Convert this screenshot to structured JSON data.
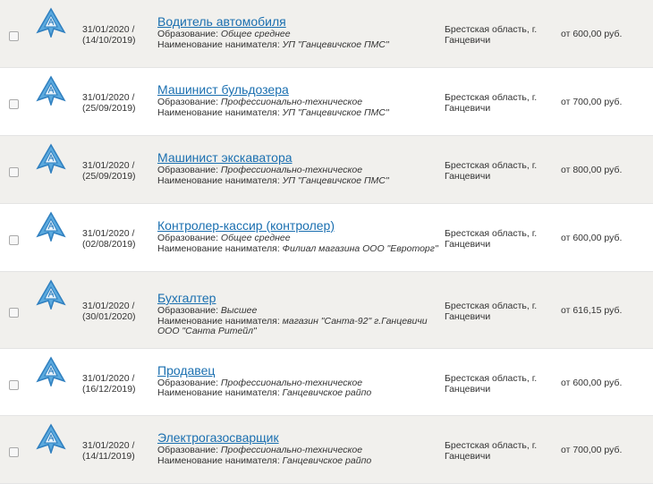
{
  "labels": {
    "education": "Образование: ",
    "employer": "Наименование нанимателя: "
  },
  "vacancies": [
    {
      "date": "31/01/2020 /",
      "orig_date": "(14/10/2019)",
      "title": "Водитель автомобиля",
      "education": "Общее среднее",
      "employer": "УП \"Ганцевичское ПМС\"",
      "employer2": "",
      "location": "Брестская область, г. Ганцевичи",
      "salary": "от 600,00 руб."
    },
    {
      "date": "31/01/2020 /",
      "orig_date": "(25/09/2019)",
      "title": "Машинист бульдозера",
      "education": "Профессионально-техническое",
      "employer": "УП \"Ганцевичское ПМС\"",
      "employer2": "",
      "location": "Брестская область, г. Ганцевичи",
      "salary": "от 700,00 руб."
    },
    {
      "date": "31/01/2020 /",
      "orig_date": "(25/09/2019)",
      "title": "Машинист экскаватора",
      "education": "Профессионально-техническое",
      "employer": "УП \"Ганцевичское ПМС\"",
      "employer2": "",
      "location": "Брестская область, г. Ганцевичи",
      "salary": "от 800,00 руб."
    },
    {
      "date": "31/01/2020 /",
      "orig_date": "(02/08/2019)",
      "title": "Контролер-кассир (контролер)",
      "education": "Общее среднее",
      "employer": "Филиал магазина ООО \"Евроторг\"",
      "employer2": "",
      "location": "Брестская область, г. Ганцевичи",
      "salary": "от 600,00 руб."
    },
    {
      "date": "31/01/2020 /",
      "orig_date": "(30/01/2020)",
      "title": "Бухгалтер",
      "education": "Высшее",
      "employer": "магазин \"Санта-92\" г.Ганцевичи",
      "employer2": "ООО \"Санта Ритейл\"",
      "location": "Брестская область, г. Ганцевичи",
      "salary": "от 616,15 руб."
    },
    {
      "date": "31/01/2020 /",
      "orig_date": "(16/12/2019)",
      "title": "Продавец",
      "education": "Профессионально-техническое",
      "employer": "Ганцевичское райпо",
      "employer2": "",
      "location": "Брестская область, г. Ганцевичи",
      "salary": "от 600,00 руб."
    },
    {
      "date": "31/01/2020 /",
      "orig_date": "(14/11/2019)",
      "title": "Электрогазосварщик",
      "education": "Профессионально-техническое",
      "employer": "Ганцевичское райпо",
      "employer2": "",
      "location": "Брестская область, г. Ганцевичи",
      "salary": "от 700,00 руб."
    }
  ]
}
